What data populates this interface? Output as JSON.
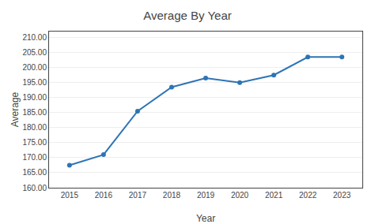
{
  "chart_data": {
    "type": "line",
    "title": "Average By Year",
    "xlabel": "Year",
    "ylabel": "Average",
    "x": [
      2015,
      2016,
      2017,
      2018,
      2019,
      2020,
      2021,
      2022,
      2023
    ],
    "values": [
      167.5,
      171.0,
      185.5,
      193.5,
      196.5,
      195.0,
      197.5,
      203.5,
      203.5
    ],
    "color": "#2E74B5",
    "marker": "circle",
    "xlim": [
      2014.4,
      2023.6
    ],
    "xticks": [
      2015,
      2016,
      2017,
      2018,
      2019,
      2020,
      2021,
      2022,
      2023
    ],
    "ylim": [
      160.0,
      212.0
    ],
    "yticks": [
      {
        "value": 160.0,
        "label": "160.00"
      },
      {
        "value": 165.0,
        "label": "165.00"
      },
      {
        "value": 170.0,
        "label": "170.00"
      },
      {
        "value": 175.0,
        "label": "175.00"
      },
      {
        "value": 180.0,
        "label": "180.00"
      },
      {
        "value": 185.0,
        "label": "185.00"
      },
      {
        "value": 190.0,
        "label": "190.00"
      },
      {
        "value": 195.0,
        "label": "195.00"
      },
      {
        "value": 200.0,
        "label": "200.00"
      },
      {
        "value": 205.0,
        "label": "205.00"
      },
      {
        "value": 210.0,
        "label": "210.00"
      }
    ],
    "grid": true
  }
}
